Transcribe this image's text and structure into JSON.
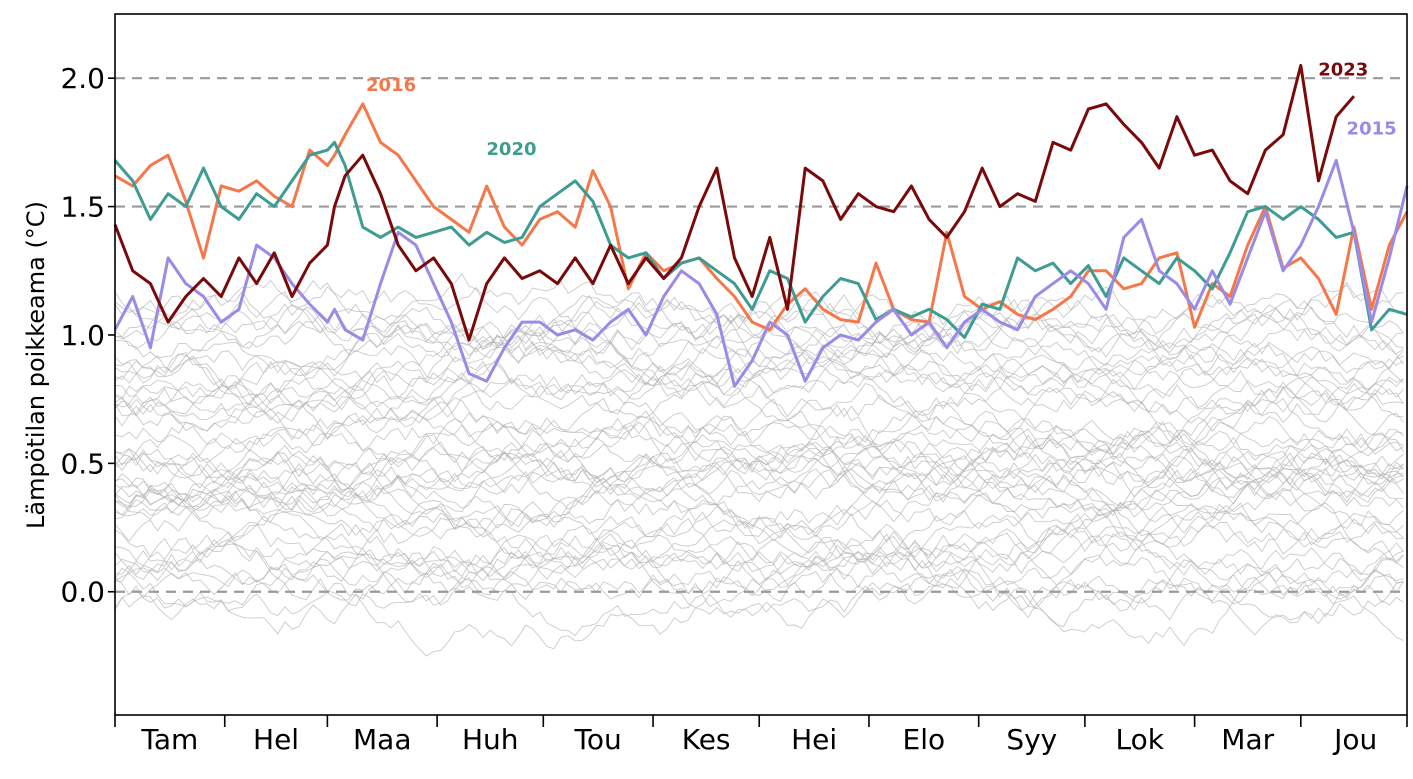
{
  "chart_data": {
    "type": "line",
    "title": "",
    "xlabel": "",
    "ylabel": "Lämpötilan poikkeama (°C)",
    "ylim": [
      -0.48,
      2.25
    ],
    "xlim": [
      0,
      365
    ],
    "yticks": [
      {
        "value": 0.0,
        "label": "0.0"
      },
      {
        "value": 0.5,
        "label": "0.5"
      },
      {
        "value": 1.0,
        "label": "1.0"
      },
      {
        "value": 1.5,
        "label": "1.5"
      },
      {
        "value": 2.0,
        "label": "2.0"
      }
    ],
    "reference_lines": [
      0.0,
      1.5,
      2.0
    ],
    "months": [
      "Tam",
      "Hel",
      "Maa",
      "Huh",
      "Tou",
      "Kes",
      "Hei",
      "Elo",
      "Syy",
      "Lok",
      "Mar",
      "Jou"
    ],
    "background_series_count": 50,
    "background_color": "#b4b4b4",
    "series": [
      {
        "name": "2016",
        "label": "2016",
        "color": "#f4784a",
        "x": [
          0,
          5,
          10,
          15,
          20,
          25,
          30,
          35,
          40,
          45,
          50,
          55,
          60,
          62,
          65,
          70,
          75,
          80,
          85,
          90,
          95,
          100,
          105,
          110,
          115,
          120,
          125,
          130,
          135,
          140,
          145,
          150,
          155,
          160,
          165,
          170,
          175,
          180,
          185,
          190,
          195,
          200,
          205,
          210,
          215,
          220,
          225,
          230,
          235,
          240,
          245,
          250,
          255,
          260,
          265,
          270,
          275,
          280,
          285,
          290,
          295,
          300,
          305,
          310,
          315,
          320,
          325,
          330,
          335,
          340,
          345,
          350,
          355,
          360,
          365
        ],
        "values": [
          1.62,
          1.58,
          1.66,
          1.7,
          1.52,
          1.3,
          1.58,
          1.56,
          1.6,
          1.54,
          1.5,
          1.72,
          1.66,
          1.7,
          1.78,
          1.9,
          1.75,
          1.7,
          1.6,
          1.5,
          1.45,
          1.4,
          1.58,
          1.42,
          1.35,
          1.45,
          1.48,
          1.42,
          1.64,
          1.5,
          1.18,
          1.32,
          1.25,
          1.28,
          1.3,
          1.22,
          1.15,
          1.05,
          1.02,
          1.12,
          1.18,
          1.1,
          1.06,
          1.05,
          1.28,
          1.1,
          1.06,
          1.05,
          1.4,
          1.15,
          1.1,
          1.13,
          1.08,
          1.06,
          1.1,
          1.15,
          1.25,
          1.25,
          1.18,
          1.2,
          1.3,
          1.32,
          1.03,
          1.2,
          1.15,
          1.35,
          1.5,
          1.26,
          1.3,
          1.22,
          1.08,
          1.42,
          1.1,
          1.35,
          1.48
        ]
      },
      {
        "name": "2020",
        "label": "2020",
        "color": "#3e9c92",
        "x": [
          0,
          5,
          10,
          15,
          20,
          25,
          30,
          35,
          40,
          45,
          50,
          55,
          60,
          62,
          65,
          70,
          75,
          80,
          85,
          90,
          95,
          100,
          105,
          110,
          115,
          120,
          125,
          130,
          135,
          140,
          145,
          150,
          155,
          160,
          165,
          170,
          175,
          180,
          185,
          190,
          195,
          200,
          205,
          210,
          215,
          220,
          225,
          230,
          235,
          240,
          245,
          250,
          255,
          260,
          265,
          270,
          275,
          280,
          285,
          290,
          295,
          300,
          305,
          310,
          315,
          320,
          325,
          330,
          335,
          340,
          345,
          350,
          355,
          360,
          365
        ],
        "values": [
          1.68,
          1.6,
          1.45,
          1.55,
          1.5,
          1.65,
          1.5,
          1.45,
          1.55,
          1.5,
          1.6,
          1.7,
          1.72,
          1.75,
          1.66,
          1.42,
          1.38,
          1.42,
          1.38,
          1.4,
          1.42,
          1.35,
          1.4,
          1.36,
          1.38,
          1.5,
          1.55,
          1.6,
          1.52,
          1.35,
          1.3,
          1.32,
          1.22,
          1.28,
          1.3,
          1.25,
          1.2,
          1.1,
          1.25,
          1.22,
          1.05,
          1.15,
          1.22,
          1.2,
          1.06,
          1.1,
          1.07,
          1.1,
          1.06,
          0.99,
          1.12,
          1.1,
          1.3,
          1.25,
          1.28,
          1.2,
          1.27,
          1.15,
          1.3,
          1.25,
          1.2,
          1.3,
          1.25,
          1.18,
          1.32,
          1.48,
          1.5,
          1.45,
          1.5,
          1.45,
          1.38,
          1.4,
          1.02,
          1.1,
          1.08
        ]
      },
      {
        "name": "2015",
        "label": "2015",
        "color": "#9b8ae6",
        "x": [
          0,
          5,
          10,
          15,
          20,
          25,
          30,
          35,
          40,
          45,
          50,
          55,
          60,
          62,
          65,
          70,
          75,
          80,
          85,
          90,
          95,
          100,
          105,
          110,
          115,
          120,
          125,
          130,
          135,
          140,
          145,
          150,
          155,
          160,
          165,
          170,
          175,
          180,
          185,
          190,
          195,
          200,
          205,
          210,
          215,
          220,
          225,
          230,
          235,
          240,
          245,
          250,
          255,
          260,
          265,
          270,
          275,
          280,
          285,
          290,
          295,
          300,
          305,
          310,
          315,
          320,
          325,
          330,
          335,
          340,
          345,
          350,
          355,
          360,
          365
        ],
        "values": [
          1.02,
          1.15,
          0.95,
          1.3,
          1.2,
          1.15,
          1.05,
          1.1,
          1.35,
          1.3,
          1.2,
          1.12,
          1.05,
          1.1,
          1.02,
          0.98,
          1.2,
          1.4,
          1.35,
          1.2,
          1.05,
          0.85,
          0.82,
          0.95,
          1.05,
          1.05,
          1.0,
          1.02,
          0.98,
          1.05,
          1.1,
          1.0,
          1.15,
          1.25,
          1.2,
          1.08,
          0.8,
          0.9,
          1.05,
          1.0,
          0.82,
          0.95,
          1.0,
          0.98,
          1.05,
          1.1,
          1.0,
          1.05,
          0.95,
          1.05,
          1.1,
          1.05,
          1.02,
          1.15,
          1.2,
          1.25,
          1.2,
          1.1,
          1.38,
          1.45,
          1.25,
          1.2,
          1.1,
          1.25,
          1.12,
          1.3,
          1.48,
          1.25,
          1.35,
          1.5,
          1.68,
          1.4,
          1.05,
          1.3,
          1.58
        ]
      },
      {
        "name": "2023",
        "label": "2023",
        "color": "#7a0a0a",
        "x": [
          0,
          5,
          10,
          15,
          20,
          25,
          30,
          35,
          40,
          45,
          50,
          55,
          60,
          62,
          65,
          70,
          75,
          80,
          85,
          90,
          95,
          100,
          105,
          110,
          115,
          120,
          125,
          130,
          135,
          140,
          145,
          150,
          155,
          160,
          165,
          170,
          175,
          180,
          185,
          190,
          195,
          200,
          205,
          210,
          215,
          220,
          225,
          230,
          235,
          240,
          245,
          250,
          255,
          260,
          265,
          270,
          275,
          280,
          285,
          290,
          295,
          300,
          305,
          310,
          315,
          320,
          325,
          330,
          335,
          340,
          345,
          350
        ],
        "values": [
          1.43,
          1.25,
          1.2,
          1.05,
          1.15,
          1.22,
          1.15,
          1.3,
          1.2,
          1.32,
          1.15,
          1.28,
          1.35,
          1.5,
          1.62,
          1.7,
          1.55,
          1.35,
          1.25,
          1.3,
          1.2,
          0.98,
          1.2,
          1.3,
          1.22,
          1.25,
          1.2,
          1.3,
          1.2,
          1.35,
          1.2,
          1.3,
          1.22,
          1.3,
          1.5,
          1.65,
          1.3,
          1.15,
          1.38,
          1.1,
          1.65,
          1.6,
          1.45,
          1.55,
          1.5,
          1.48,
          1.58,
          1.45,
          1.38,
          1.48,
          1.65,
          1.5,
          1.55,
          1.52,
          1.75,
          1.72,
          1.88,
          1.9,
          1.82,
          1.75,
          1.65,
          1.85,
          1.7,
          1.72,
          1.6,
          1.55,
          1.72,
          1.78,
          2.05,
          1.6,
          1.85,
          1.93
        ]
      }
    ]
  }
}
